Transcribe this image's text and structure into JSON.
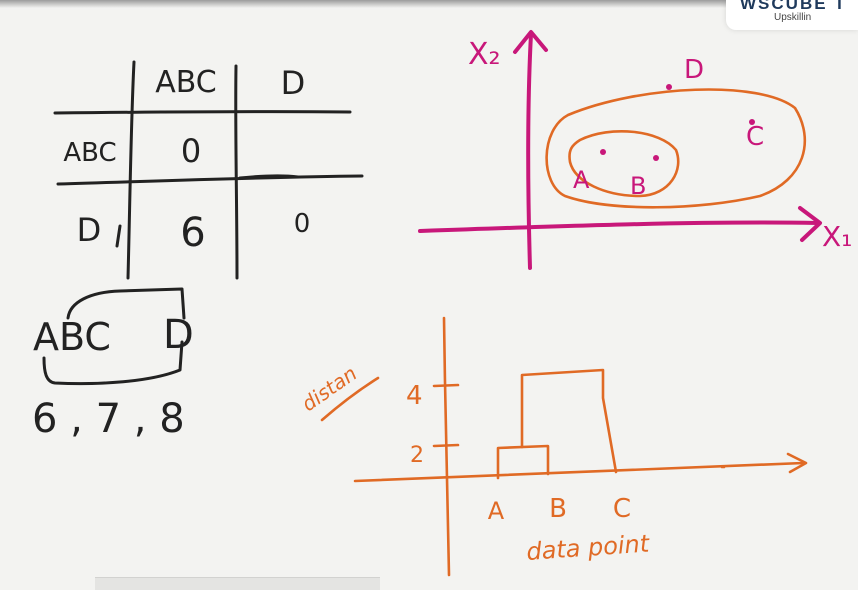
{
  "logo": {
    "main": "WSCUBE T",
    "sub": "Upskillin"
  },
  "matrix": {
    "col_headers": [
      "ABC",
      "D"
    ],
    "row_headers": [
      "ABC",
      "D"
    ],
    "cells": [
      [
        "0",
        ""
      ],
      [
        "6",
        "0"
      ]
    ]
  },
  "merge_note": {
    "group_left": "ABC",
    "group_right": "D",
    "distances": "6 , 7 , 8"
  },
  "scatter": {
    "x_axis_label": "X₁",
    "y_axis_label": "X₂",
    "points": [
      {
        "name": "A",
        "label": "A"
      },
      {
        "name": "B",
        "label": "B"
      },
      {
        "name": "C",
        "label": "C"
      },
      {
        "name": "D",
        "label": "D"
      }
    ]
  },
  "dendrogram": {
    "y_label": "distan",
    "x_label": "data point",
    "y_ticks": [
      "4",
      "2"
    ],
    "x_ticks": [
      "A",
      "B",
      "C"
    ]
  },
  "colors": {
    "ink": "#222222",
    "magenta": "#c8177a",
    "orange": "#e06a25"
  }
}
